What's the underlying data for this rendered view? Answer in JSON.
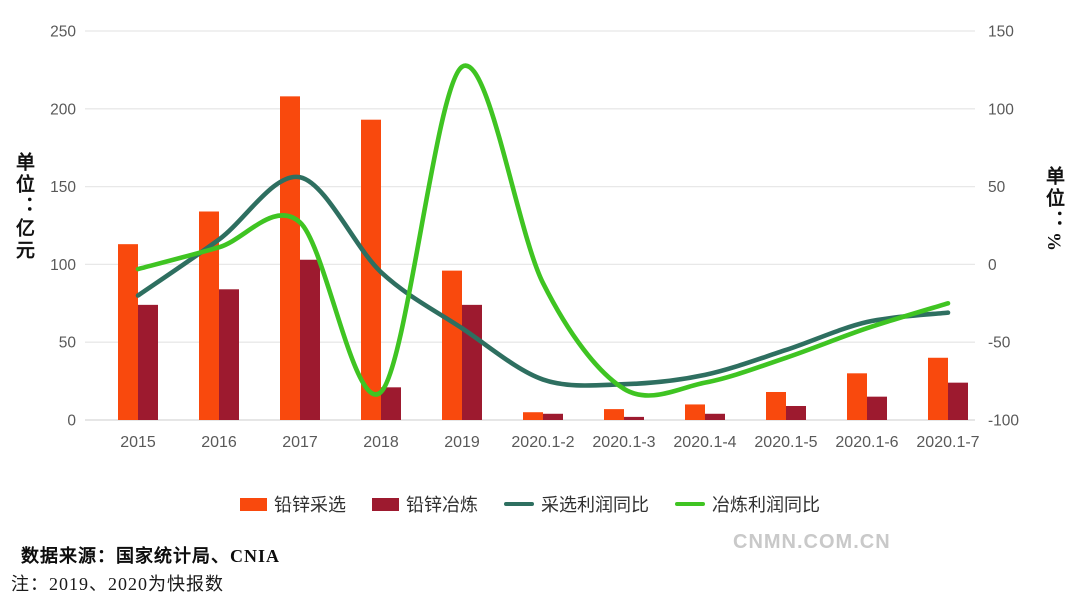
{
  "chart_data": {
    "type": "combo-bar-line",
    "title": "",
    "categories": [
      "2015",
      "2016",
      "2017",
      "2018",
      "2019",
      "2020.1-2",
      "2020.1-3",
      "2020.1-4",
      "2020.1-5",
      "2020.1-6",
      "2020.1-7"
    ],
    "series": [
      {
        "key": "mining-output-bar",
        "name": "铅锌采选",
        "type": "bar",
        "axis": "left",
        "color": "#F9490D",
        "values": [
          113,
          134,
          208,
          193,
          96,
          5,
          7,
          10,
          18,
          30,
          40
        ]
      },
      {
        "key": "smelting-output-bar",
        "name": "铅锌冶炼",
        "type": "bar",
        "axis": "left",
        "color": "#9D1A2F",
        "values": [
          74,
          84,
          103,
          21,
          74,
          4,
          2,
          4,
          9,
          15,
          24
        ]
      },
      {
        "key": "mining-profit-yoy-line",
        "name": "采选利润同比",
        "type": "line",
        "axis": "right",
        "color": "#2E6F60",
        "values": [
          -20,
          16,
          56,
          -5,
          -41,
          -74,
          -77,
          -71,
          -55,
          -37,
          -31
        ]
      },
      {
        "key": "smelting-profit-yoy-line",
        "name": "冶炼利润同比",
        "type": "line",
        "axis": "right",
        "color": "#3FC422",
        "values": [
          -3,
          11,
          27,
          -82,
          127,
          -12,
          -80,
          -76,
          -60,
          -41,
          -25
        ]
      }
    ],
    "left_axis": {
      "title": "单位：亿元",
      "min": 0,
      "max": 250,
      "ticks": [
        0,
        50,
        100,
        150,
        200,
        250
      ]
    },
    "right_axis": {
      "title": "单位：%",
      "min": -100,
      "max": 150,
      "ticks": [
        -100,
        -50,
        0,
        50,
        100,
        150
      ]
    },
    "grid": true,
    "legend_position": "bottom",
    "grid_color": "#E8E8E8",
    "baseline_color": "#D6D6D6",
    "tick_text_color": "#595959"
  },
  "footer": {
    "source": "数据来源：国家统计局、CNIA",
    "note": "注：2019、2020为快报数",
    "watermark": "CNMN.COM.CN"
  }
}
